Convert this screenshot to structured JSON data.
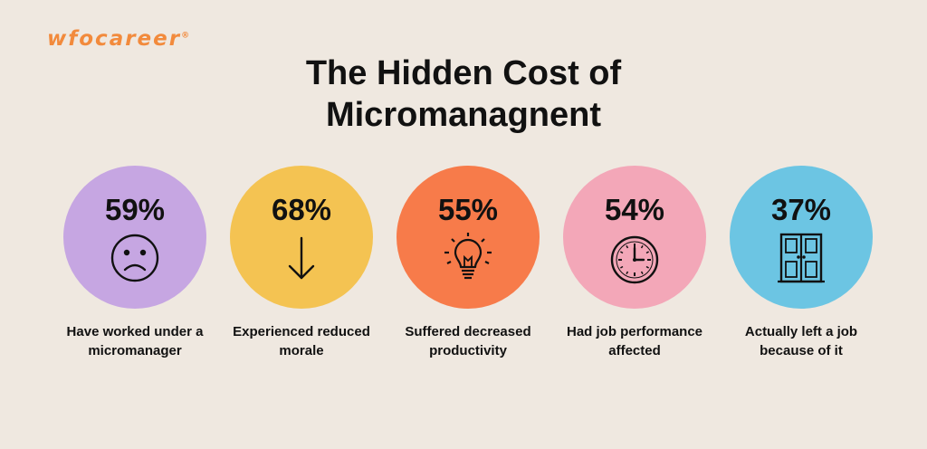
{
  "brand": {
    "name": "wfocareer",
    "mark": "®"
  },
  "title": {
    "line1": "The Hidden Cost of",
    "line2": "Micromanagnent"
  },
  "stats": [
    {
      "value": "59%",
      "label_line1": "Have worked under a",
      "label_line2": "micromanager",
      "icon": "sad-face-icon",
      "color": "#c6a6e2"
    },
    {
      "value": "68%",
      "label_line1": "Experienced reduced",
      "label_line2": "morale",
      "icon": "arrow-down-icon",
      "color": "#f4c352"
    },
    {
      "value": "55%",
      "label_line1": "Suffered decreased",
      "label_line2": "productivity",
      "icon": "lightbulb-icon",
      "color": "#f77b4a"
    },
    {
      "value": "54%",
      "label_line1": "Had job performance",
      "label_line2": "affected",
      "icon": "clock-icon",
      "color": "#f3a7b8"
    },
    {
      "value": "37%",
      "label_line1": "Actually left a job",
      "label_line2": "because of it",
      "icon": "door-icon",
      "color": "#6cc5e3"
    }
  ]
}
